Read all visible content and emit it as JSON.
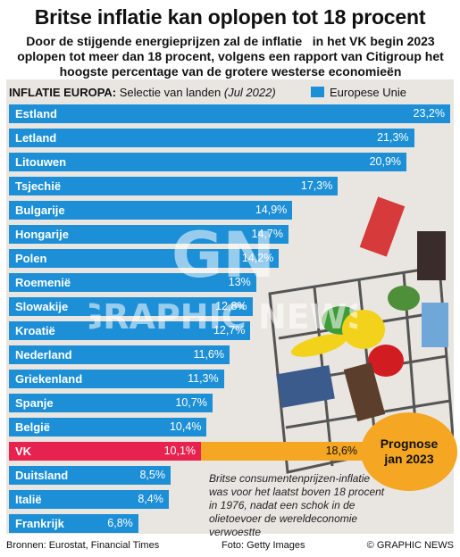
{
  "headline": "Britse inflatie kan oplopen tot 18 procent",
  "subtitle": "Door de stijgende energieprijzen zal de inflatie   in het VK begin 2023 oplopen tot meer dan 18 procent, volgens een rapport van Citigroup het hoogste percentage van de grotere westerse economieën",
  "chart_header": {
    "title": "INFLATIE EUROPA:",
    "subtitle": "Selectie van landen",
    "period": "(Jul 2022)"
  },
  "legend": {
    "label": "Europese Unie"
  },
  "colors": {
    "eu_bar": "#1c8fd6",
    "uk_bar": "#e8224f",
    "forecast_bar": "#f5a623",
    "panel": "#e9e6e1"
  },
  "chart_data": {
    "type": "bar",
    "orientation": "horizontal",
    "title": "INFLATIE EUROPA: Selectie van landen (Jul 2022)",
    "unit": "%",
    "categories": [
      "Estland",
      "Letland",
      "Litouwen",
      "Tsjechië",
      "Bulgarije",
      "Hongarije",
      "Polen",
      "Roemenië",
      "Slowakije",
      "Kroatië",
      "Nederland",
      "Griekenland",
      "Spanje",
      "België",
      "VK",
      "Duitsland",
      "Italië",
      "Frankrijk"
    ],
    "values": [
      23.2,
      21.3,
      20.9,
      17.3,
      14.9,
      14.7,
      14.2,
      13.0,
      12.8,
      12.7,
      11.6,
      11.3,
      10.7,
      10.4,
      10.1,
      8.5,
      8.4,
      6.8
    ],
    "value_labels": [
      "23,2%",
      "21,3%",
      "20,9%",
      "17,3%",
      "14,9%",
      "14,7%",
      "14,2%",
      "13%",
      "12,8%",
      "12,7%",
      "11,6%",
      "11,3%",
      "10,7%",
      "10,4%",
      "10,1%",
      "8,5%",
      "8,4%",
      "6,8%"
    ],
    "series": [
      {
        "name": "Europese Unie"
      }
    ],
    "highlight": {
      "category": "VK",
      "value": 10.1,
      "forecast_value": 18.6,
      "forecast_label": "18,6%",
      "callout": [
        "Prognose",
        "jan 2023"
      ]
    },
    "xlim": [
      0,
      23.2
    ],
    "legend_position": "top-right"
  },
  "note": "Britse consumentenprijzen-inflatie was voor het laatst boven 18 procent in 1976, nadat een schok in de olietoevoer de wereldeconomie verwoestte",
  "footer": {
    "source": "Bronnen: Eurostat, Financial Times",
    "photo": "Foto: Getty Images",
    "credit": "© GRAPHIC NEWS"
  },
  "watermark": "GRAPHIC NEWS"
}
